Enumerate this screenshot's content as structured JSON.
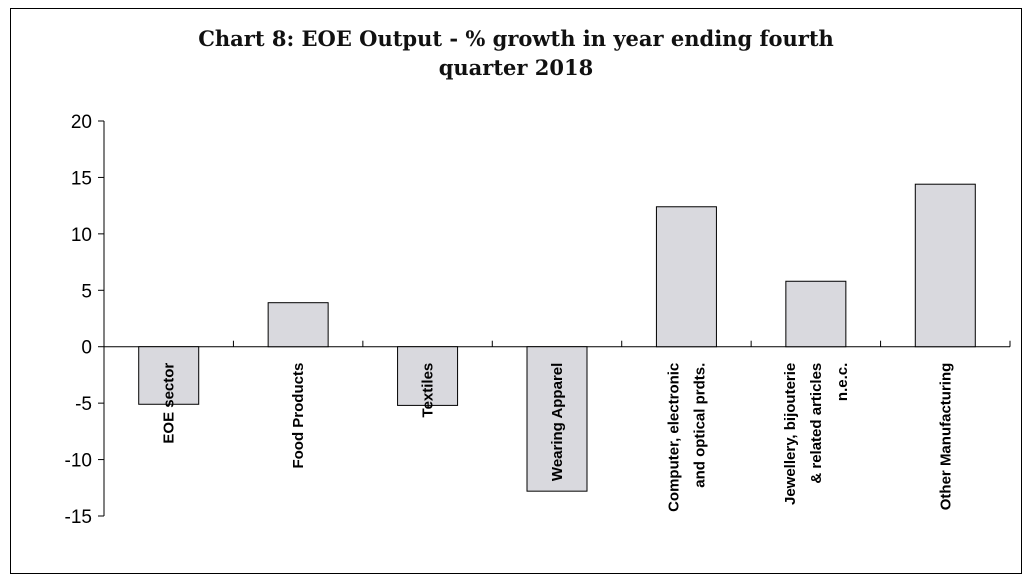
{
  "title_line1": "Chart 8: EOE Output - % growth in year ending fourth",
  "title_line2": "quarter 2018",
  "chart_data": {
    "type": "bar",
    "title": "Chart 8: EOE Output - % growth in year ending fourth quarter 2018",
    "categories": [
      [
        "EOE sector"
      ],
      [
        "Food Products"
      ],
      [
        "Textiles"
      ],
      [
        "Wearing Apparel"
      ],
      [
        "Computer, electronic",
        "and optical prdts."
      ],
      [
        "Jewellery, bijouterie",
        "& related articles",
        "n.e.c."
      ],
      [
        "Other Manufacturing"
      ]
    ],
    "values": [
      -5.1,
      3.9,
      -5.2,
      -12.8,
      12.4,
      5.8,
      14.4
    ],
    "ylim": [
      -15,
      20
    ],
    "yticks": [
      20,
      15,
      10,
      5,
      0,
      -5,
      -10,
      -15
    ],
    "bar_color": "#d9d9de",
    "bar_edge": "#000000"
  }
}
